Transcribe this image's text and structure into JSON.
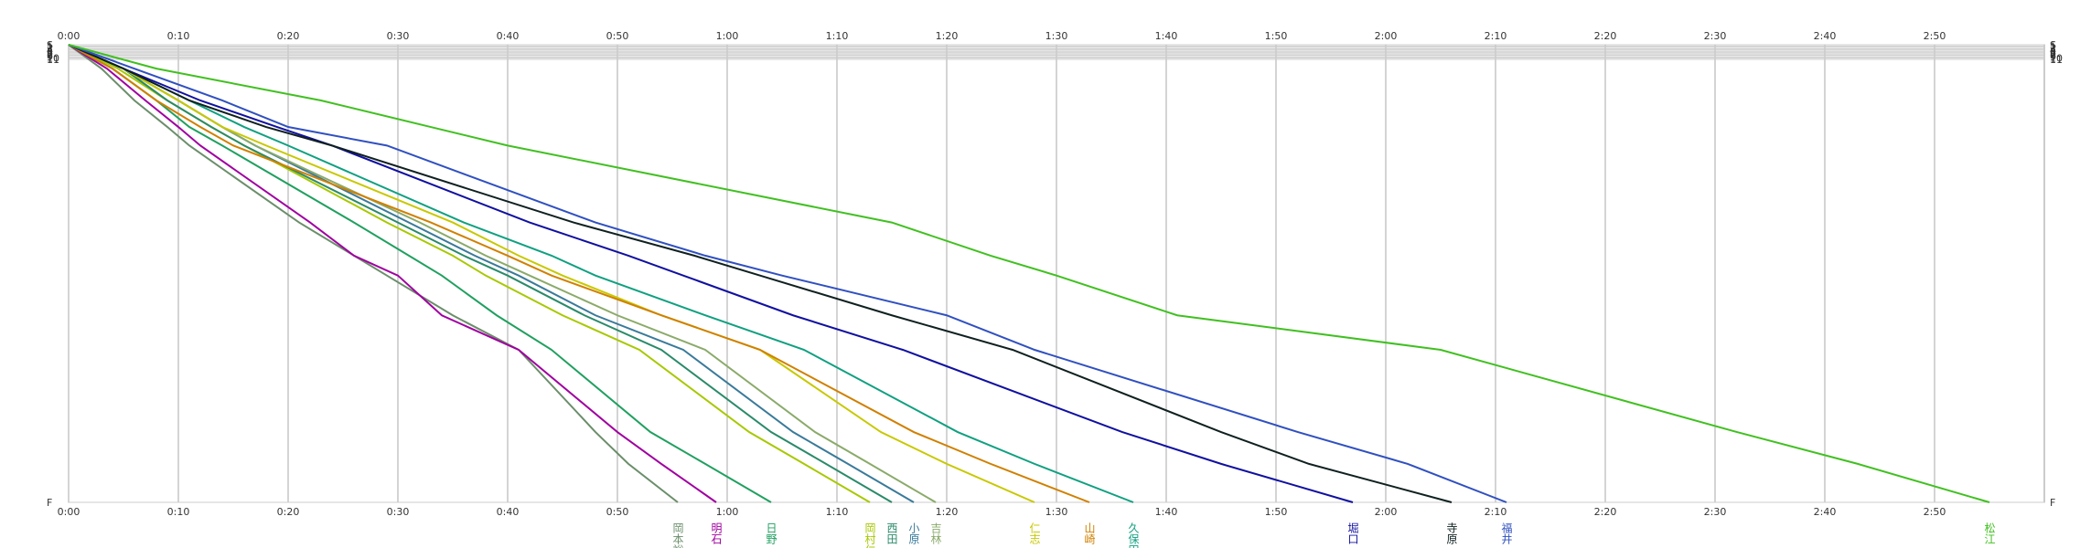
{
  "chart_data": {
    "type": "line",
    "xlim": [
      0,
      180
    ],
    "xticks": [
      {
        "value": 0,
        "label": "0:00"
      },
      {
        "value": 10,
        "label": "0:10"
      },
      {
        "value": 20,
        "label": "0:20"
      },
      {
        "value": 30,
        "label": "0:30"
      },
      {
        "value": 40,
        "label": "0:40"
      },
      {
        "value": 50,
        "label": "0:50"
      },
      {
        "value": 60,
        "label": "1:00"
      },
      {
        "value": 70,
        "label": "1:10"
      },
      {
        "value": 80,
        "label": "1:20"
      },
      {
        "value": 90,
        "label": "1:30"
      },
      {
        "value": 100,
        "label": "1:40"
      },
      {
        "value": 110,
        "label": "1:50"
      },
      {
        "value": 120,
        "label": "2:00"
      },
      {
        "value": 130,
        "label": "2:10"
      },
      {
        "value": 140,
        "label": "2:20"
      },
      {
        "value": 150,
        "label": "2:30"
      },
      {
        "value": 160,
        "label": "2:40"
      },
      {
        "value": 170,
        "label": "2:50"
      }
    ],
    "ylim": [
      0,
      345
    ],
    "yticks": [
      {
        "value": 0,
        "label": "S"
      },
      1,
      2,
      3,
      4,
      5,
      6,
      7,
      8,
      9,
      10,
      11,
      {
        "value": 345,
        "label": "F"
      }
    ],
    "y": [
      0,
      18,
      42,
      62,
      76,
      134,
      159,
      174,
      204,
      230,
      292,
      316,
      345
    ],
    "y_inverted": true,
    "grid": true,
    "series": [
      {
        "name": "岡本裕",
        "color": "#6b8e6b",
        "values": [
          0,
          3,
          6,
          9,
          11,
          21,
          26,
          29,
          35,
          41,
          48,
          51,
          55.5
        ]
      },
      {
        "name": "明石",
        "color": "#a000a0",
        "values": [
          0,
          3.5,
          7,
          10,
          12,
          22,
          26,
          30,
          34,
          41,
          50,
          54,
          59
        ]
      },
      {
        "name": "日野",
        "color": "#20a060",
        "values": [
          0,
          4,
          8,
          11,
          14,
          26,
          31,
          34,
          39,
          44,
          53,
          58,
          64
        ]
      },
      {
        "name": "岡村仁",
        "color": "#a8c800",
        "values": [
          0,
          4.5,
          9,
          13,
          16,
          29,
          35,
          38,
          45,
          52,
          62,
          67,
          73
        ]
      },
      {
        "name": "西田",
        "color": "#2a8a6a",
        "values": [
          0,
          5,
          9,
          13,
          16,
          30,
          36,
          40,
          47,
          54,
          64,
          69,
          75
        ]
      },
      {
        "name": "小原",
        "color": "#3a7a9a",
        "values": [
          0,
          5,
          10,
          14,
          17,
          31,
          37,
          41,
          48,
          56,
          66,
          71,
          77
        ]
      },
      {
        "name": "吉林",
        "color": "#8aaa6a",
        "values": [
          0,
          5,
          10,
          14,
          17,
          32,
          38,
          42,
          50,
          58,
          68,
          73,
          79
        ]
      },
      {
        "name": "仁志",
        "color": "#c8c800",
        "values": [
          0,
          5,
          10,
          14,
          18,
          35,
          41,
          45,
          54,
          63,
          74,
          80,
          88
        ]
      },
      {
        "name": "山崎",
        "color": "#d08000",
        "values": [
          0,
          4,
          8,
          12,
          15,
          33,
          40,
          44,
          54,
          63,
          77,
          84,
          93
        ]
      },
      {
        "name": "久保田",
        "color": "#10a080",
        "values": [
          0,
          5,
          11,
          16,
          20,
          36,
          44,
          48,
          58,
          67,
          81,
          88,
          97
        ]
      },
      {
        "name": "堀口",
        "color": "#1010a0",
        "values": [
          0,
          5,
          12,
          19,
          24,
          42,
          51,
          56,
          66,
          76,
          96,
          105,
          117
        ]
      },
      {
        "name": "寺原",
        "color": "#102020",
        "values": [
          0,
          5,
          11,
          18,
          24,
          46,
          57,
          63,
          75,
          86,
          105,
          113,
          126
        ]
      },
      {
        "name": "福井",
        "color": "#3050c0",
        "values": [
          0,
          6,
          14,
          20,
          29,
          48,
          58,
          65,
          80,
          88,
          112,
          122,
          131
        ]
      },
      {
        "name": "松江",
        "color": "#40c020",
        "values": [
          0,
          8,
          23,
          33,
          40,
          75,
          84,
          90,
          101,
          125,
          152,
          163,
          175
        ]
      }
    ]
  }
}
